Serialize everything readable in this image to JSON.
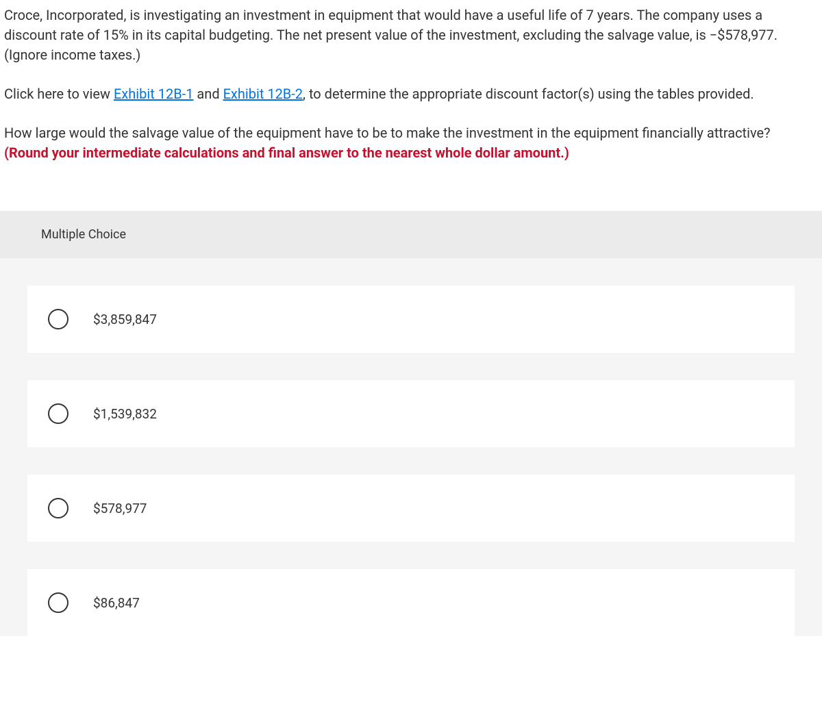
{
  "question": {
    "paragraph1": "Croce, Incorporated, is investigating an investment in equipment that would have a useful life of 7 years. The company uses a discount rate of 15% in its capital budgeting. The net present value of the investment, excluding the salvage value, is −$578,977. (Ignore income taxes.)",
    "paragraph2_pre": "Click here to view ",
    "link1": "Exhibit 12B-1",
    "paragraph2_mid": " and ",
    "link2": "Exhibit 12B-2",
    "paragraph2_post": ", to determine the appropriate discount factor(s) using the tables provided.",
    "paragraph3_pre": "How large would the salvage value of the equipment have to be to make the investment in the equipment financially attractive? ",
    "paragraph3_instruction": "(Round your intermediate calculations and final answer to the nearest whole dollar amount.)"
  },
  "mc": {
    "header": "Multiple Choice",
    "options": [
      {
        "label": "$3,859,847"
      },
      {
        "label": "$1,539,832"
      },
      {
        "label": "$578,977"
      },
      {
        "label": "$86,847"
      }
    ]
  },
  "colors": {
    "link": "#0073e6",
    "instruction": "#c8102e",
    "text": "#333333",
    "mc_header_bg": "#ebebeb",
    "mc_body_bg": "#f5f5f5",
    "option_bg": "#ffffff"
  }
}
